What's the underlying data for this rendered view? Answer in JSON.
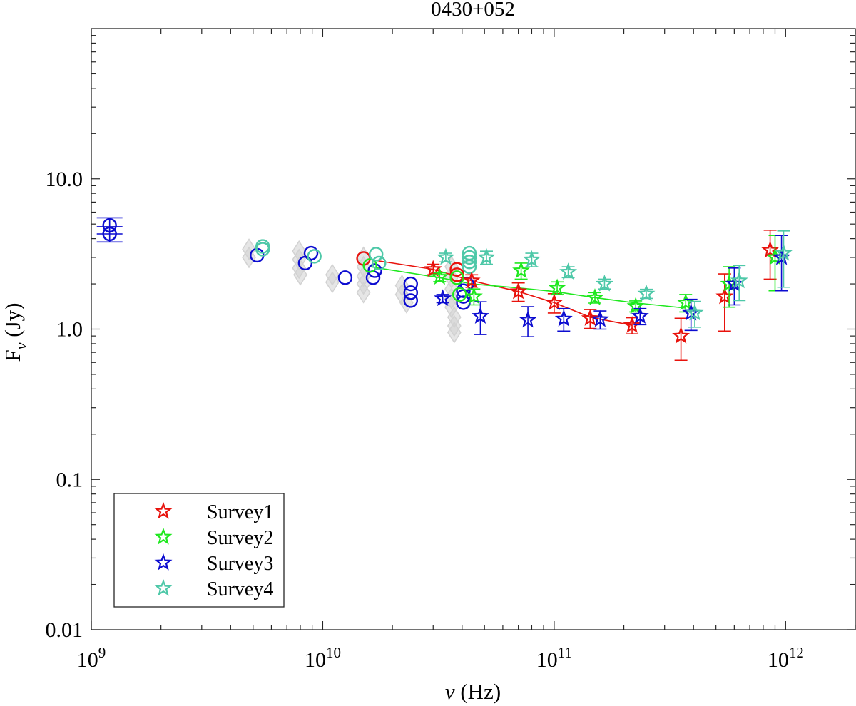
{
  "chart_data": {
    "type": "scatter",
    "title": "0430+052",
    "xlabel": {
      "main": "ν",
      "unit": "(Hz)"
    },
    "ylabel": {
      "main": "F",
      "sub": "ν",
      "unit": "(Jy)"
    },
    "xscale": "log",
    "yscale": "log",
    "xlim": [
      1000000000.0,
      2000000000000.0
    ],
    "ylim": [
      0.01,
      100
    ],
    "xticks": [
      {
        "value": 1000000000.0,
        "base": "10",
        "exp": "9"
      },
      {
        "value": 10000000000.0,
        "base": "10",
        "exp": "10"
      },
      {
        "value": 100000000000.0,
        "base": "10",
        "exp": "11"
      },
      {
        "value": 1000000000000.0,
        "base": "10",
        "exp": "12"
      }
    ],
    "yticks": [
      {
        "value": 0.01,
        "label": "0.01"
      },
      {
        "value": 0.1,
        "label": "0.1"
      },
      {
        "value": 1,
        "label": "1.0"
      },
      {
        "value": 10,
        "label": "10.0"
      }
    ],
    "legend_position": "bottom-left",
    "series": [
      {
        "name": "Survey1",
        "color": "#e8120c",
        "marker": "star",
        "line": true,
        "points": [
          {
            "x": 30000000000.0,
            "y": 2.5,
            "err": 0.2
          },
          {
            "x": 44000000000.0,
            "y": 2.1,
            "err": 0.2
          },
          {
            "x": 70000000000.0,
            "y": 1.78,
            "err": 0.25
          },
          {
            "x": 100000000000.0,
            "y": 1.5,
            "err": 0.22
          },
          {
            "x": 143000000000.0,
            "y": 1.18,
            "err": 0.17
          },
          {
            "x": 217000000000.0,
            "y": 1.06,
            "err": 0.13
          },
          {
            "x": 353000000000.0,
            "y": 0.9,
            "err": 0.28
          },
          {
            "x": 545000000000.0,
            "y": 1.65,
            "err": 0.68
          },
          {
            "x": 857000000000.0,
            "y": 3.35,
            "err": 1.2
          }
        ],
        "fit_line": [
          {
            "x": 16000000000.0,
            "y": 2.9
          },
          {
            "x": 30000000000.0,
            "y": 2.5
          },
          {
            "x": 44000000000.0,
            "y": 2.1
          },
          {
            "x": 70000000000.0,
            "y": 1.78
          },
          {
            "x": 100000000000.0,
            "y": 1.5
          },
          {
            "x": 143000000000.0,
            "y": 1.2
          },
          {
            "x": 217000000000.0,
            "y": 1.06
          }
        ]
      },
      {
        "name": "Survey2",
        "color": "#1ee81e",
        "marker": "star",
        "line": true,
        "points": [
          {
            "x": 32000000000.0,
            "y": 2.22,
            "err": 0.15
          },
          {
            "x": 45000000000.0,
            "y": 1.65,
            "err": 0.2
          },
          {
            "x": 72000000000.0,
            "y": 2.45,
            "err": 0.3
          },
          {
            "x": 103000000000.0,
            "y": 1.88,
            "err": 0.18
          },
          {
            "x": 150000000000.0,
            "y": 1.62,
            "err": 0.13
          },
          {
            "x": 225000000000.0,
            "y": 1.42,
            "err": 0.12
          },
          {
            "x": 370000000000.0,
            "y": 1.5,
            "err": 0.2
          },
          {
            "x": 570000000000.0,
            "y": 2.0,
            "err": 0.6
          },
          {
            "x": 900000000000.0,
            "y": 3.0,
            "err": 1.2
          }
        ],
        "fit_line": [
          {
            "x": 16000000000.0,
            "y": 2.6
          },
          {
            "x": 32000000000.0,
            "y": 2.2
          },
          {
            "x": 44000000000.0,
            "y": 2.0
          },
          {
            "x": 70000000000.0,
            "y": 1.88
          },
          {
            "x": 100000000000.0,
            "y": 1.78
          },
          {
            "x": 150000000000.0,
            "y": 1.62
          },
          {
            "x": 220000000000.0,
            "y": 1.5
          },
          {
            "x": 370000000000.0,
            "y": 1.38
          }
        ]
      },
      {
        "name": "Survey3",
        "color": "#0c0cd0",
        "marker": "star",
        "line": false,
        "points": [
          {
            "x": 33000000000.0,
            "y": 1.6,
            "err": 0.1
          },
          {
            "x": 48000000000.0,
            "y": 1.22,
            "err": 0.3
          },
          {
            "x": 77000000000.0,
            "y": 1.15,
            "err": 0.26
          },
          {
            "x": 110000000000.0,
            "y": 1.17,
            "err": 0.2
          },
          {
            "x": 158000000000.0,
            "y": 1.16,
            "err": 0.16
          },
          {
            "x": 235000000000.0,
            "y": 1.22,
            "err": 0.15
          },
          {
            "x": 390000000000.0,
            "y": 1.28,
            "err": 0.3
          },
          {
            "x": 600000000000.0,
            "y": 2.0,
            "err": 0.55
          },
          {
            "x": 960000000000.0,
            "y": 3.0,
            "err": 1.2
          }
        ]
      },
      {
        "name": "Survey4",
        "color": "#4ec8a8",
        "marker": "star",
        "line": false,
        "points": [
          {
            "x": 34000000000.0,
            "y": 3.0,
            "err": 0.2
          },
          {
            "x": 51000000000.0,
            "y": 3.0,
            "err": 0.3
          },
          {
            "x": 80000000000.0,
            "y": 2.9,
            "err": 0.3
          },
          {
            "x": 115000000000.0,
            "y": 2.4,
            "err": 0.2
          },
          {
            "x": 165000000000.0,
            "y": 2.0,
            "err": 0.15
          },
          {
            "x": 250000000000.0,
            "y": 1.72,
            "err": 0.12
          },
          {
            "x": 405000000000.0,
            "y": 1.28,
            "err": 0.25
          },
          {
            "x": 630000000000.0,
            "y": 2.1,
            "err": 0.55
          },
          {
            "x": 980000000000.0,
            "y": 3.2,
            "err": 1.3
          }
        ]
      },
      {
        "color": "#0c0cd0",
        "marker": "circle",
        "points": [
          {
            "x": 1200000000.0,
            "y": 4.9,
            "err": 0.6
          },
          {
            "x": 1200000000.0,
            "y": 4.3,
            "err": 0.5
          },
          {
            "x": 5200000000.0,
            "y": 3.1
          },
          {
            "x": 8400000000.0,
            "y": 2.75
          },
          {
            "x": 8900000000.0,
            "y": 3.2
          },
          {
            "x": 12500000000.0,
            "y": 2.2
          },
          {
            "x": 16500000000.0,
            "y": 2.2
          },
          {
            "x": 16800000000.0,
            "y": 2.45
          },
          {
            "x": 24000000000.0,
            "y": 2.0
          },
          {
            "x": 24000000000.0,
            "y": 1.75
          },
          {
            "x": 24000000000.0,
            "y": 1.55
          },
          {
            "x": 40500000000.0,
            "y": 1.8
          },
          {
            "x": 40500000000.0,
            "y": 1.65
          },
          {
            "x": 40500000000.0,
            "y": 1.5
          },
          {
            "x": 42000000000.0,
            "y": 2.0
          }
        ]
      },
      {
        "color": "#e8120c",
        "marker": "circle",
        "points": [
          {
            "x": 15000000000.0,
            "y": 2.95
          },
          {
            "x": 38000000000.0,
            "y": 2.5
          },
          {
            "x": 38000000000.0,
            "y": 2.3
          }
        ]
      },
      {
        "color": "#1ee81e",
        "marker": "circle",
        "points": [
          {
            "x": 16000000000.0,
            "y": 2.65
          },
          {
            "x": 38000000000.0,
            "y": 2.2
          },
          {
            "x": 39000000000.0,
            "y": 1.7
          }
        ]
      },
      {
        "color": "#4ec8a8",
        "marker": "circle",
        "points": [
          {
            "x": 5500000000.0,
            "y": 3.55
          },
          {
            "x": 5500000000.0,
            "y": 3.4
          },
          {
            "x": 9200000000.0,
            "y": 3.05
          },
          {
            "x": 17000000000.0,
            "y": 3.15
          },
          {
            "x": 17500000000.0,
            "y": 2.75
          },
          {
            "x": 43000000000.0,
            "y": 3.2
          },
          {
            "x": 43000000000.0,
            "y": 3.0
          },
          {
            "x": 43000000000.0,
            "y": 2.8
          },
          {
            "x": 43000000000.0,
            "y": 2.6
          }
        ]
      },
      {
        "color": "#d2d2d2",
        "marker": "diamond",
        "points": [
          {
            "x": 4800000000.0,
            "y": 3.4
          },
          {
            "x": 4800000000.0,
            "y": 3.0
          },
          {
            "x": 7900000000.0,
            "y": 3.3
          },
          {
            "x": 7900000000.0,
            "y": 2.9
          },
          {
            "x": 7900000000.0,
            "y": 2.55
          },
          {
            "x": 8000000000.0,
            "y": 2.3
          },
          {
            "x": 11000000000.0,
            "y": 2.3
          },
          {
            "x": 11000000000.0,
            "y": 2.05
          },
          {
            "x": 15000000000.0,
            "y": 3.0
          },
          {
            "x": 15000000000.0,
            "y": 2.6
          },
          {
            "x": 15000000000.0,
            "y": 2.25
          },
          {
            "x": 15000000000.0,
            "y": 2.0
          },
          {
            "x": 15000000000.0,
            "y": 1.75
          },
          {
            "x": 22000000000.0,
            "y": 1.95
          },
          {
            "x": 22000000000.0,
            "y": 1.7
          },
          {
            "x": 23000000000.0,
            "y": 1.5
          },
          {
            "x": 36000000000.0,
            "y": 2.6
          },
          {
            "x": 36000000000.0,
            "y": 2.2
          },
          {
            "x": 36000000000.0,
            "y": 1.85
          },
          {
            "x": 36000000000.0,
            "y": 1.6
          },
          {
            "x": 36000000000.0,
            "y": 1.4
          },
          {
            "x": 37000000000.0,
            "y": 1.2
          },
          {
            "x": 37000000000.0,
            "y": 1.05
          },
          {
            "x": 37000000000.0,
            "y": 0.95
          }
        ]
      }
    ]
  }
}
